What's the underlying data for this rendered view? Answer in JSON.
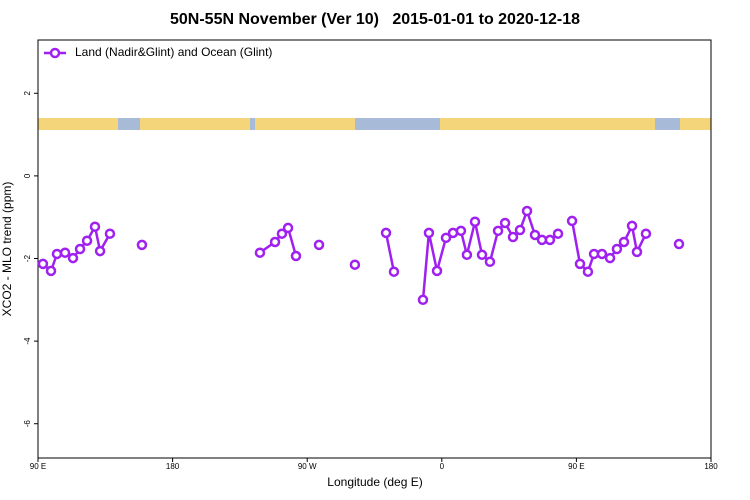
{
  "chart_data": {
    "type": "line",
    "title": "50N-55N November (Ver 10)   2015-01-01 to 2020-12-18",
    "x_label": "Longitude (deg E)",
    "y_label": "XCO2 - MLO trend (ppm)",
    "x": [
      93.3,
      98.7,
      102.7,
      108.1,
      113.4,
      118.1,
      122.8,
      128.1,
      131.5,
      138.1,
      null,
      159.5,
      null,
      238.4,
      248.5,
      253.1,
      257.2,
      262.5,
      null,
      277.9,
      null,
      301.9,
      null,
      322.7,
      328.0,
      null,
      347.4,
      351.4,
      356.8,
      362.8,
      367.5,
      372.8,
      376.8,
      382.2,
      386.9,
      392.2,
      397.6,
      402.3,
      407.6,
      412.3,
      417.0,
      422.3,
      427.0,
      432.3,
      437.7,
      null,
      447.1,
      452.4,
      457.7,
      461.8,
      467.1,
      472.5,
      477.1,
      481.8,
      487.2,
      490.5,
      496.5,
      null,
      518.6
    ],
    "series": [
      {
        "name": "Land (Nadir&Glint) and Ocean (Glint)",
        "color": "#a020f0",
        "values": [
          -2.13,
          -2.3,
          -1.89,
          -1.86,
          -1.99,
          -1.77,
          -1.57,
          -1.23,
          -1.82,
          -1.4,
          null,
          -1.67,
          null,
          -1.86,
          -1.6,
          -1.4,
          -1.26,
          -1.94,
          null,
          -1.67,
          null,
          -2.15,
          null,
          -1.38,
          -2.32,
          null,
          -3.0,
          -1.38,
          -2.3,
          -1.5,
          -1.38,
          -1.33,
          -1.91,
          -1.11,
          -1.91,
          -2.08,
          -1.33,
          -1.14,
          -1.48,
          -1.31,
          -0.85,
          -1.43,
          -1.55,
          -1.55,
          -1.4,
          null,
          -1.09,
          -2.13,
          -2.32,
          -1.89,
          -1.89,
          -1.99,
          -1.77,
          -1.6,
          -1.21,
          -1.84,
          -1.4,
          null,
          -1.65
        ]
      }
    ],
    "xlim": [
      90,
      540
    ],
    "xticks": [
      {
        "value": 90,
        "label": "90 E"
      },
      {
        "value": 180,
        "label": "180"
      },
      {
        "value": 270,
        "label": "90 W"
      },
      {
        "value": 360,
        "label": "0"
      },
      {
        "value": 450,
        "label": "90 E"
      },
      {
        "value": 540,
        "label": "180"
      }
    ],
    "ylim": [
      -6.83,
      3.29
    ],
    "yticks": [
      2,
      0,
      -2,
      -4,
      -6
    ],
    "legend": "top-left"
  }
}
